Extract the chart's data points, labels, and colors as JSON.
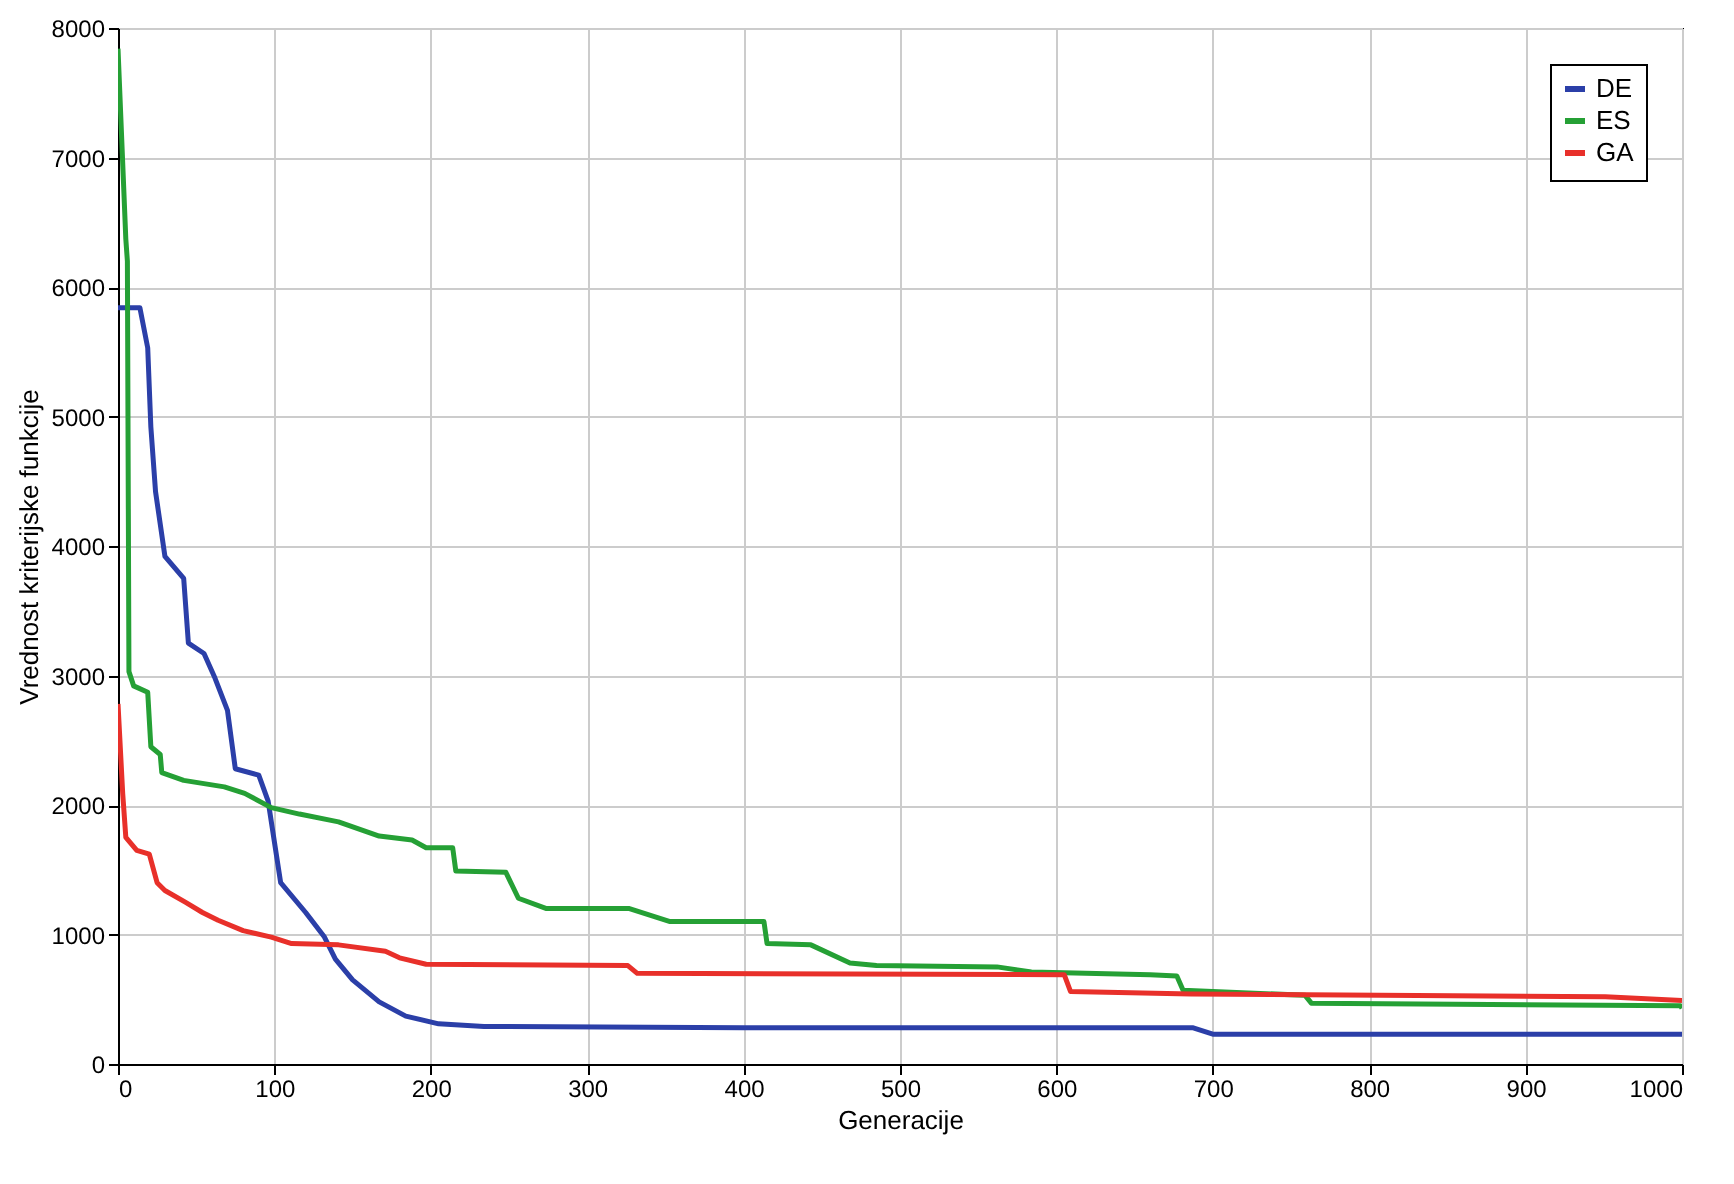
{
  "chart_data": {
    "type": "line",
    "xlabel": "Generacije",
    "ylabel": "Vrednost kriterijske funkcije",
    "xlim": [
      0,
      1000
    ],
    "xticks": [
      0,
      100,
      200,
      300,
      400,
      500,
      600,
      700,
      800,
      900,
      1000
    ],
    "ylim": [
      0,
      8000
    ],
    "yticks": [
      0,
      1000,
      2000,
      3000,
      4000,
      5000,
      6000,
      7000,
      8000
    ],
    "grid": true,
    "legend": "top right",
    "line_style": "solid",
    "marker": "none",
    "series": [
      {
        "name": "DE",
        "color": "#2b3fa8",
        "x": [
          0,
          14,
          19,
          21,
          24,
          30,
          42,
          45,
          55,
          62,
          70,
          75,
          90,
          96,
          104,
          120,
          132,
          139,
          150,
          167,
          184,
          205,
          234,
          400,
          600,
          687,
          700,
          1000
        ],
        "values": [
          5840,
          5840,
          5530,
          4920,
          4420,
          3920,
          3750,
          3250,
          3170,
          2980,
          2730,
          2280,
          2230,
          2030,
          1400,
          1170,
          980,
          810,
          650,
          480,
          370,
          310,
          290,
          280,
          280,
          280,
          230,
          230
        ]
      },
      {
        "name": "ES",
        "color": "#25a035",
        "x": [
          0,
          5,
          6,
          7,
          10,
          19,
          21,
          27,
          28,
          42,
          68,
          81,
          98,
          116,
          141,
          167,
          188,
          197,
          214,
          216,
          248,
          256,
          274,
          327,
          353,
          413,
          415,
          443,
          468,
          485,
          562,
          584,
          660,
          677,
          681,
          759,
          763,
          999,
          1000
        ],
        "values": [
          7840,
          6370,
          6200,
          3030,
          2920,
          2870,
          2450,
          2390,
          2250,
          2190,
          2140,
          2090,
          1980,
          1930,
          1870,
          1760,
          1730,
          1670,
          1670,
          1490,
          1480,
          1280,
          1200,
          1200,
          1100,
          1100,
          930,
          920,
          780,
          760,
          750,
          710,
          690,
          680,
          570,
          530,
          470,
          450,
          430
        ]
      },
      {
        "name": "GA",
        "color": "#e8302a",
        "x": [
          0,
          3,
          5,
          12,
          20,
          25,
          30,
          43,
          54,
          64,
          80,
          98,
          111,
          141,
          171,
          180,
          197,
          326,
          332,
          605,
          609,
          686,
          951,
          1000
        ],
        "values": [
          2780,
          2090,
          1750,
          1650,
          1620,
          1400,
          1340,
          1250,
          1170,
          1110,
          1030,
          980,
          930,
          920,
          870,
          820,
          770,
          760,
          700,
          690,
          560,
          540,
          520,
          490
        ]
      }
    ]
  }
}
